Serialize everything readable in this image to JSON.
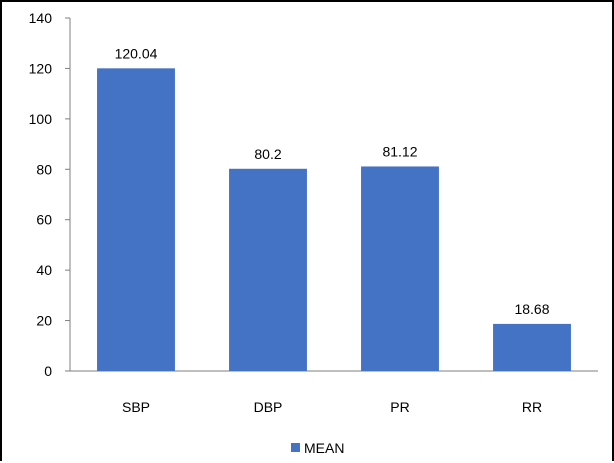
{
  "chart_data": {
    "type": "bar",
    "categories": [
      "SBP",
      "DBP",
      "PR",
      "RR"
    ],
    "series": [
      {
        "name": "MEAN",
        "values": [
          120.04,
          80.2,
          81.12,
          18.68
        ],
        "color": "#4472C4"
      }
    ],
    "data_labels": [
      "120.04",
      "80.2",
      "81.12",
      "18.68"
    ],
    "ylim": [
      0,
      140
    ],
    "yticks": [
      "0",
      "20",
      "40",
      "60",
      "80",
      "100",
      "120",
      "140"
    ],
    "grid": false,
    "legend": {
      "position": "bottom",
      "entries": [
        "MEAN"
      ]
    },
    "axis_color": "#7f7f7f",
    "label_color": "#000000"
  }
}
